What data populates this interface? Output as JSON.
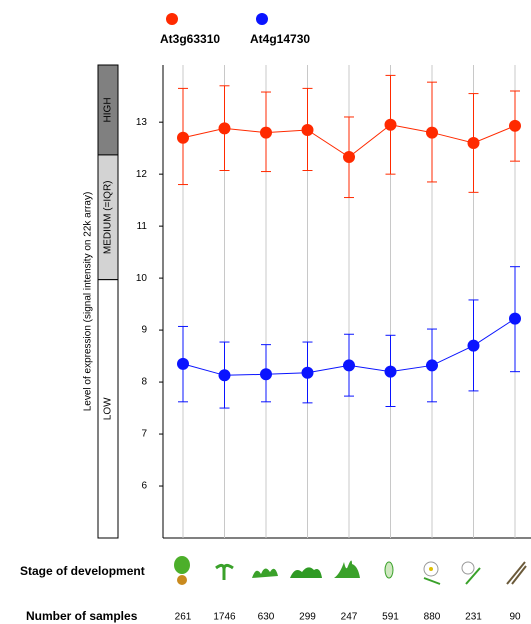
{
  "chart_data": {
    "type": "errorbar-line",
    "y_label": "Level of expression (signal intensity on 22k array)",
    "ylim": [
      5.0,
      14.1
    ],
    "yticks": [
      6,
      7,
      8,
      9,
      10,
      11,
      12,
      13
    ],
    "levels": [
      {
        "label": "HIGH",
        "from": 12.37,
        "to": 14.1,
        "color": "#808080",
        "text_color": "#fff"
      },
      {
        "label": "MEDIUM (=IQR)",
        "from": 9.97,
        "to": 12.37,
        "color": "#d3d3d3",
        "text_color": "#000"
      },
      {
        "label": "LOW",
        "from": 5.0,
        "to": 9.97,
        "color": "#ffffff",
        "text_color": "#000"
      }
    ],
    "stage_label": "Stage of development",
    "samples_label": "Number of samples",
    "samples": [
      261,
      1746,
      630,
      299,
      247,
      591,
      880,
      231,
      90
    ],
    "series": [
      {
        "name": "At3g63310",
        "color": "#ff2a00",
        "values": [
          12.7,
          12.88,
          12.8,
          12.85,
          12.33,
          12.95,
          12.8,
          12.6,
          12.93
        ],
        "low": [
          11.8,
          12.07,
          12.05,
          12.07,
          11.55,
          12.0,
          11.85,
          11.65,
          12.25
        ],
        "high": [
          13.65,
          13.7,
          13.58,
          13.65,
          13.1,
          13.9,
          13.77,
          13.55,
          13.6
        ]
      },
      {
        "name": "At4g14730",
        "color": "#0a14ff",
        "values": [
          8.35,
          8.13,
          8.15,
          8.18,
          8.32,
          8.2,
          8.32,
          8.7,
          9.22
        ],
        "low": [
          7.62,
          7.5,
          7.62,
          7.6,
          7.73,
          7.53,
          7.62,
          7.83,
          8.2
        ],
        "high": [
          9.07,
          8.77,
          8.72,
          8.77,
          8.92,
          8.9,
          9.02,
          9.58,
          10.22
        ]
      }
    ]
  }
}
